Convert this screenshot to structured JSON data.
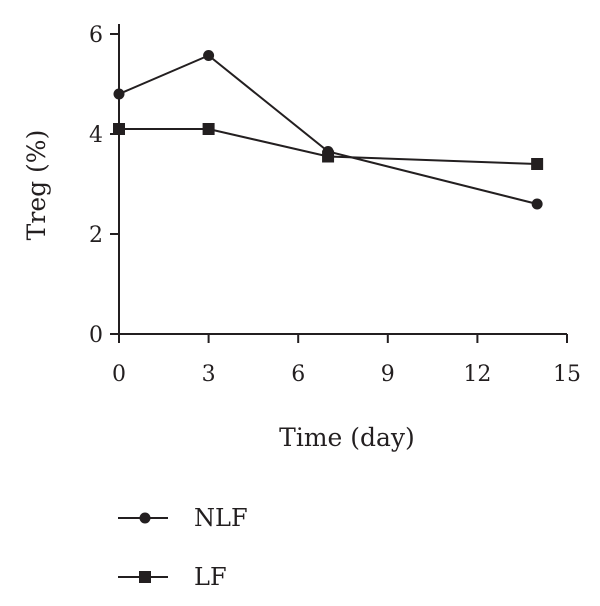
{
  "chart_data": {
    "type": "line",
    "xlabel": "Time (day)",
    "ylabel": "Treg (%)",
    "xlim": [
      0,
      15
    ],
    "ylim": [
      0,
      6
    ],
    "xticks": [
      0,
      3,
      6,
      9,
      12,
      15
    ],
    "yticks": [
      0,
      2,
      4,
      6
    ],
    "grid": false,
    "legend_position": "bottom",
    "series": [
      {
        "name": "NLF",
        "marker": "circle",
        "x": [
          0,
          3,
          7,
          14
        ],
        "y": [
          4.8,
          5.57,
          3.65,
          2.6
        ]
      },
      {
        "name": "LF",
        "marker": "square",
        "x": [
          0,
          3,
          7,
          14
        ],
        "y": [
          4.1,
          4.1,
          3.55,
          3.4
        ]
      }
    ]
  }
}
